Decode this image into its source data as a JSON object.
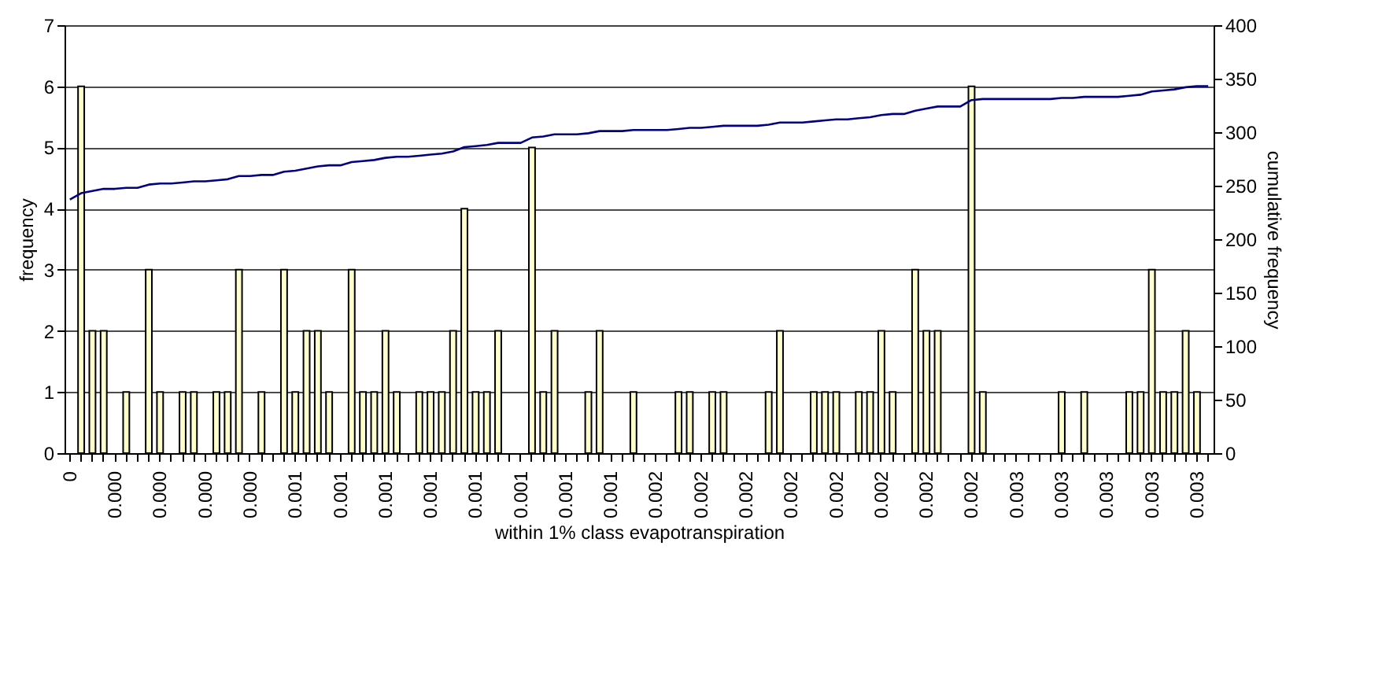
{
  "chart_data": {
    "type": "bar",
    "xlabel": "within 1% class evapotranspiration",
    "ylabel": "frequency",
    "y2label": "cumulative frequency",
    "categories": [
      "0",
      null,
      null,
      null,
      "0.000",
      null,
      null,
      null,
      "0.000",
      null,
      null,
      null,
      "0.000",
      null,
      null,
      null,
      "0.000",
      null,
      null,
      null,
      "0.001",
      null,
      null,
      null,
      "0.001",
      null,
      null,
      null,
      "0.001",
      null,
      null,
      null,
      "0.001",
      null,
      null,
      null,
      "0.001",
      null,
      null,
      null,
      "0.001",
      null,
      null,
      null,
      "0.001",
      null,
      null,
      null,
      "0.001",
      null,
      null,
      null,
      "0.002",
      null,
      null,
      null,
      "0.002",
      null,
      null,
      null,
      "0.002",
      null,
      null,
      null,
      "0.002",
      null,
      null,
      null,
      "0.002",
      null,
      null,
      null,
      "0.002",
      null,
      null,
      null,
      "0.002",
      null,
      null,
      null,
      "0.002",
      null,
      null,
      null,
      "0.003",
      null,
      null,
      null,
      "0.003",
      null,
      null,
      null,
      "0.003",
      null,
      null,
      null,
      "0.003",
      null,
      null,
      null,
      "0.003",
      null
    ],
    "series": [
      {
        "color": "#ffffcc",
        "values": [
          0,
          6,
          2,
          2,
          0,
          1,
          0,
          3,
          1,
          0,
          1,
          1,
          0,
          1,
          1,
          3,
          0,
          1,
          0,
          3,
          1,
          2,
          2,
          1,
          0,
          3,
          1,
          1,
          2,
          1,
          0,
          1,
          1,
          1,
          2,
          4,
          1,
          1,
          2,
          0,
          0,
          5,
          1,
          2,
          0,
          0,
          1,
          2,
          0,
          0,
          1,
          0,
          0,
          0,
          1,
          1,
          0,
          1,
          1,
          0,
          0,
          0,
          1,
          2,
          0,
          0,
          1,
          1,
          1,
          0,
          1,
          1,
          2,
          1,
          0,
          3,
          2,
          2,
          0,
          0,
          6,
          1,
          0,
          0,
          0,
          0,
          0,
          0,
          1,
          0,
          1,
          0,
          0,
          0,
          1,
          1,
          3,
          1,
          1,
          2,
          1,
          0
        ]
      },
      {
        "type": "line",
        "axis": "y2",
        "color": "#000080",
        "values": [
          237,
          243,
          245,
          247,
          247,
          248,
          248,
          251,
          252,
          252,
          253,
          254,
          254,
          255,
          256,
          259,
          259,
          260,
          260,
          263,
          264,
          266,
          268,
          269,
          269,
          272,
          273,
          274,
          276,
          277,
          277,
          278,
          279,
          280,
          282,
          286,
          287,
          288,
          290,
          290,
          290,
          295,
          296,
          298,
          298,
          298,
          299,
          301,
          301,
          301,
          302,
          302,
          302,
          302,
          303,
          304,
          304,
          305,
          306,
          306,
          306,
          306,
          307,
          309,
          309,
          309,
          310,
          311,
          312,
          312,
          313,
          314,
          316,
          317,
          317,
          320,
          322,
          324,
          324,
          324,
          330,
          331,
          331,
          331,
          331,
          331,
          331,
          331,
          332,
          332,
          333,
          333,
          333,
          333,
          334,
          335,
          338,
          339,
          340,
          342,
          343,
          343
        ]
      }
    ],
    "ylim": [
      0,
      7
    ],
    "yticks": [
      0,
      1,
      2,
      3,
      4,
      5,
      6,
      7
    ],
    "y2lim": [
      0,
      400
    ],
    "y2ticks": [
      0,
      50,
      100,
      150,
      200,
      250,
      300,
      350,
      400
    ],
    "grid": "y",
    "marker": "none",
    "line_style": "solid"
  }
}
